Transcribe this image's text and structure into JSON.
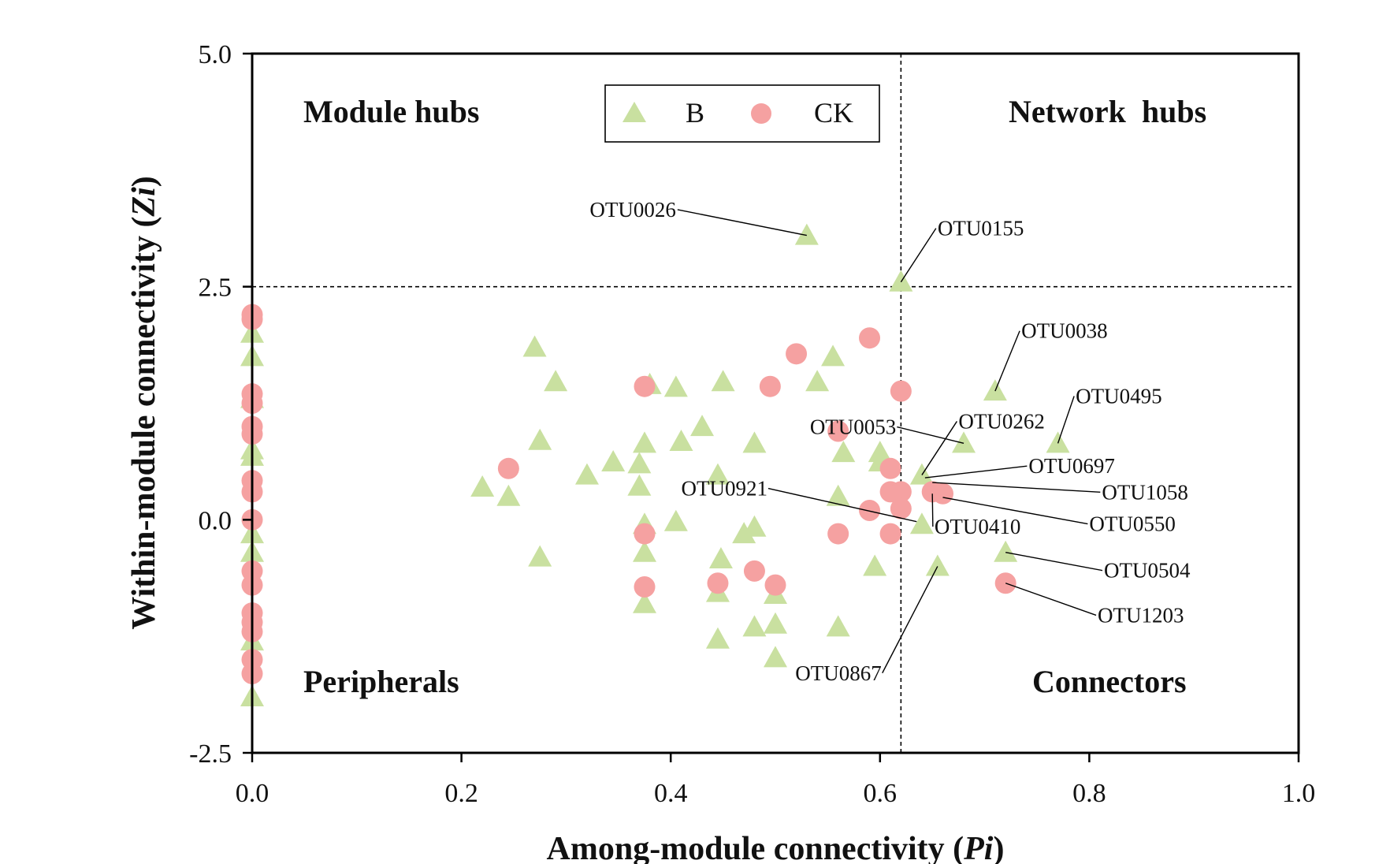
{
  "chart_data": {
    "type": "scatter",
    "xlabel_prefix": "Among-module connectivity (",
    "xlabel_var": "Pi",
    "xlabel_suffix": ")",
    "ylabel_prefix": "Within-module connectivity (",
    "ylabel_var": "Zi",
    "ylabel_suffix": ")",
    "xlim": [
      0.0,
      1.0
    ],
    "ylim": [
      -2.5,
      5.0
    ],
    "x_ticks": [
      "0.0",
      "0.2",
      "0.4",
      "0.6",
      "0.8",
      "1.0"
    ],
    "y_ticks": [
      "-2.5",
      "0.0",
      "2.5",
      "5.0"
    ],
    "thresholds": {
      "pi": 0.62,
      "zi": 2.5
    },
    "quadrants": {
      "module_hubs": "Module hubs",
      "network_hubs": "Network  hubs",
      "peripherals": "Peripherals",
      "connectors": "Connectors"
    },
    "legend": [
      {
        "name": "B",
        "marker": "triangle",
        "color": "#c9e0a0"
      },
      {
        "name": "CK",
        "marker": "circle",
        "color": "#f5a1a1"
      }
    ],
    "series": [
      {
        "name": "B",
        "marker": "triangle",
        "color": "#c9e0a0",
        "points": [
          [
            0.0,
            2.0
          ],
          [
            0.0,
            1.75
          ],
          [
            0.0,
            1.3
          ],
          [
            0.0,
            0.75
          ],
          [
            0.0,
            0.68
          ],
          [
            0.0,
            -0.15
          ],
          [
            0.0,
            -0.35
          ],
          [
            0.0,
            -1.3
          ],
          [
            0.0,
            -1.9
          ],
          [
            0.22,
            0.35
          ],
          [
            0.245,
            0.25
          ],
          [
            0.27,
            1.85
          ],
          [
            0.275,
            0.85
          ],
          [
            0.275,
            -0.4
          ],
          [
            0.29,
            1.48
          ],
          [
            0.32,
            0.48
          ],
          [
            0.345,
            0.62
          ],
          [
            0.37,
            0.6
          ],
          [
            0.37,
            0.36
          ],
          [
            0.375,
            0.82
          ],
          [
            0.375,
            -0.05
          ],
          [
            0.375,
            -0.35
          ],
          [
            0.375,
            -0.9
          ],
          [
            0.38,
            1.45
          ],
          [
            0.405,
            1.42
          ],
          [
            0.405,
            -0.02
          ],
          [
            0.41,
            0.84
          ],
          [
            0.43,
            1.0
          ],
          [
            0.445,
            0.48
          ],
          [
            0.445,
            -0.78
          ],
          [
            0.445,
            -1.28
          ],
          [
            0.448,
            -0.42
          ],
          [
            0.45,
            1.48
          ],
          [
            0.47,
            -0.15
          ],
          [
            0.48,
            0.82
          ],
          [
            0.48,
            -0.08
          ],
          [
            0.48,
            -1.15
          ],
          [
            0.5,
            -0.8
          ],
          [
            0.5,
            -1.12
          ],
          [
            0.5,
            -1.48
          ],
          [
            0.53,
            3.05
          ],
          [
            0.54,
            1.48
          ],
          [
            0.555,
            1.75
          ],
          [
            0.56,
            0.25
          ],
          [
            0.56,
            -1.15
          ],
          [
            0.565,
            0.72
          ],
          [
            0.595,
            -0.5
          ],
          [
            0.6,
            0.72
          ],
          [
            0.6,
            0.62
          ],
          [
            0.62,
            2.55
          ],
          [
            0.64,
            0.48
          ],
          [
            0.64,
            -0.05
          ],
          [
            0.655,
            -0.5
          ],
          [
            0.68,
            0.82
          ],
          [
            0.71,
            1.38
          ],
          [
            0.72,
            -0.35
          ],
          [
            0.77,
            0.82
          ]
        ]
      },
      {
        "name": "CK",
        "marker": "circle",
        "color": "#f5a1a1",
        "points": [
          [
            0.0,
            2.2
          ],
          [
            0.0,
            2.15
          ],
          [
            0.0,
            1.35
          ],
          [
            0.0,
            1.25
          ],
          [
            0.0,
            1.0
          ],
          [
            0.0,
            0.92
          ],
          [
            0.0,
            0.42
          ],
          [
            0.0,
            0.3
          ],
          [
            0.0,
            0.0
          ],
          [
            0.0,
            -0.55
          ],
          [
            0.0,
            -0.7
          ],
          [
            0.0,
            -1.0
          ],
          [
            0.0,
            -1.1
          ],
          [
            0.0,
            -1.2
          ],
          [
            0.0,
            -1.5
          ],
          [
            0.0,
            -1.65
          ],
          [
            0.245,
            0.55
          ],
          [
            0.375,
            1.43
          ],
          [
            0.375,
            -0.15
          ],
          [
            0.375,
            -0.72
          ],
          [
            0.445,
            -0.68
          ],
          [
            0.48,
            -0.55
          ],
          [
            0.5,
            -0.7
          ],
          [
            0.495,
            1.43
          ],
          [
            0.52,
            1.78
          ],
          [
            0.56,
            0.95
          ],
          [
            0.56,
            -0.15
          ],
          [
            0.59,
            1.95
          ],
          [
            0.59,
            0.1
          ],
          [
            0.61,
            0.55
          ],
          [
            0.61,
            0.3
          ],
          [
            0.61,
            -0.15
          ],
          [
            0.62,
            1.38
          ],
          [
            0.62,
            0.3
          ],
          [
            0.62,
            0.12
          ],
          [
            0.65,
            0.3
          ],
          [
            0.66,
            0.28
          ],
          [
            0.72,
            -0.68
          ]
        ]
      }
    ],
    "annotations": [
      {
        "label": "OTU0026",
        "point": [
          0.53,
          3.05
        ],
        "text_at": [
          0.405,
          3.25
        ],
        "anchor": "end"
      },
      {
        "label": "OTU0155",
        "point": [
          0.62,
          2.55
        ],
        "text_at": [
          0.655,
          3.05
        ],
        "anchor": "start"
      },
      {
        "label": "OTU0038",
        "point": [
          0.71,
          1.38
        ],
        "text_at": [
          0.735,
          1.95
        ],
        "anchor": "start"
      },
      {
        "label": "OTU0495",
        "point": [
          0.77,
          0.82
        ],
        "text_at": [
          0.787,
          1.25
        ],
        "anchor": "start"
      },
      {
        "label": "OTU0053",
        "point": [
          0.68,
          0.82
        ],
        "text_at": [
          0.533,
          0.92
        ],
        "anchor": "start"
      },
      {
        "label": "OTU0262",
        "point": [
          0.64,
          0.48
        ],
        "text_at": [
          0.675,
          0.98
        ],
        "anchor": "start"
      },
      {
        "label": "OTU0697",
        "point": [
          0.643,
          0.45
        ],
        "text_at": [
          0.742,
          0.5
        ],
        "anchor": "start"
      },
      {
        "label": "OTU1058",
        "point": [
          0.65,
          0.4
        ],
        "text_at": [
          0.812,
          0.22
        ],
        "anchor": "start"
      },
      {
        "label": "OTU0921",
        "point": [
          0.635,
          -0.02
        ],
        "text_at": [
          0.41,
          0.26
        ],
        "anchor": "start"
      },
      {
        "label": "OTU0410",
        "point": [
          0.65,
          0.28
        ],
        "text_at": [
          0.652,
          -0.15
        ],
        "anchor": "start"
      },
      {
        "label": "OTU0550",
        "point": [
          0.66,
          0.24
        ],
        "text_at": [
          0.8,
          -0.12
        ],
        "anchor": "start"
      },
      {
        "label": "OTU0504",
        "point": [
          0.72,
          -0.35
        ],
        "text_at": [
          0.814,
          -0.62
        ],
        "anchor": "start"
      },
      {
        "label": "OTU1203",
        "point": [
          0.72,
          -0.68
        ],
        "text_at": [
          0.808,
          -1.1
        ],
        "anchor": "start"
      },
      {
        "label": "OTU0867",
        "point": [
          0.655,
          -0.5
        ],
        "text_at": [
          0.519,
          -1.72
        ],
        "anchor": "start"
      }
    ]
  }
}
